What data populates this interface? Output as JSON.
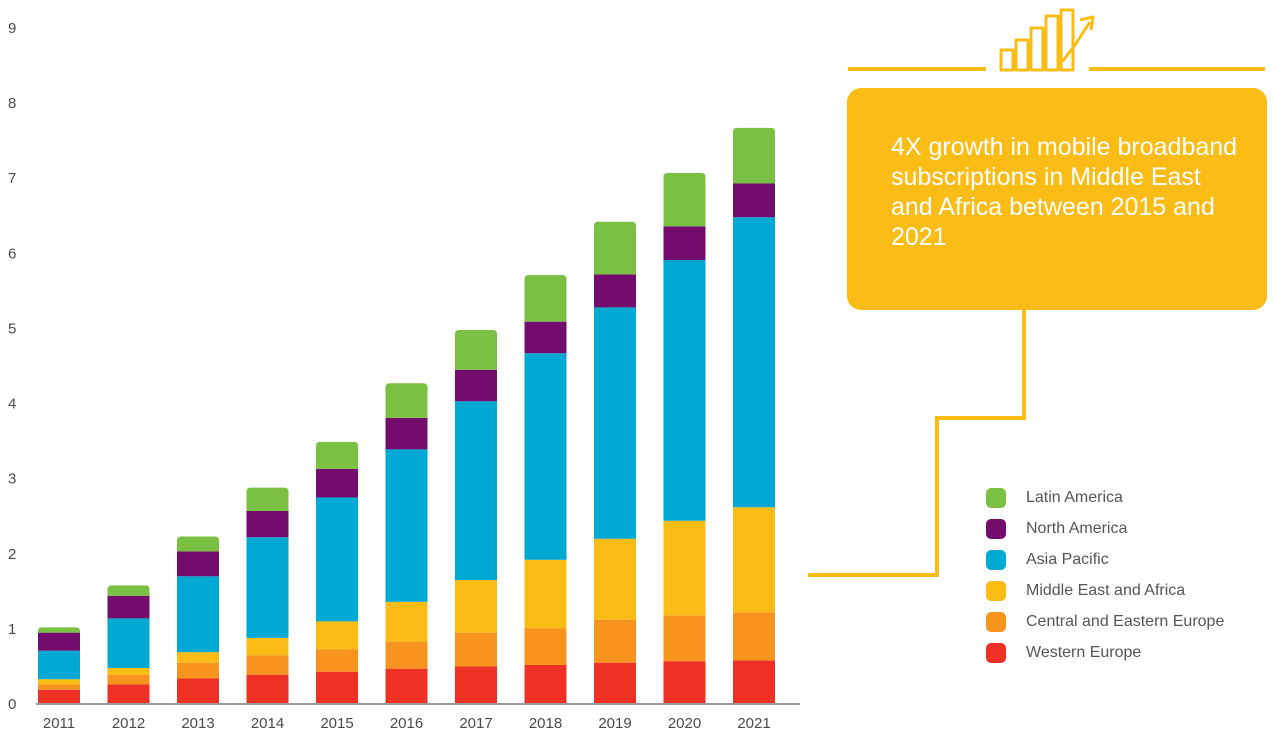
{
  "chart_data": {
    "type": "bar",
    "stacked": true,
    "categories": [
      "2011",
      "2012",
      "2013",
      "2014",
      "2015",
      "2016",
      "2017",
      "2018",
      "2019",
      "2020",
      "2021"
    ],
    "ylim": [
      0,
      9
    ],
    "yticks": [
      0,
      1,
      2,
      3,
      4,
      5,
      6,
      7,
      8,
      9
    ],
    "grid": false,
    "legend_position": "right",
    "series": [
      {
        "name": "Western Europe",
        "color": "#ee3124",
        "values": [
          0.19,
          0.26,
          0.34,
          0.39,
          0.43,
          0.47,
          0.5,
          0.52,
          0.55,
          0.57,
          0.58
        ]
      },
      {
        "name": "Central and Eastern Europe",
        "color": "#f7941d",
        "values": [
          0.07,
          0.13,
          0.21,
          0.26,
          0.3,
          0.36,
          0.45,
          0.49,
          0.57,
          0.61,
          0.64
        ]
      },
      {
        "name": "Middle East and Africa",
        "color": "#fbbc15",
        "values": [
          0.07,
          0.09,
          0.14,
          0.23,
          0.37,
          0.53,
          0.7,
          0.91,
          1.08,
          1.26,
          1.4
        ]
      },
      {
        "name": "Asia Pacific",
        "color": "#00a9d4",
        "values": [
          0.38,
          0.66,
          1.01,
          1.34,
          1.65,
          2.03,
          2.38,
          2.75,
          3.08,
          3.47,
          3.86
        ]
      },
      {
        "name": "North America",
        "color": "#740c6e",
        "values": [
          0.24,
          0.3,
          0.33,
          0.35,
          0.38,
          0.42,
          0.42,
          0.42,
          0.44,
          0.45,
          0.45
        ]
      },
      {
        "name": "Latin America",
        "color": "#7ac143",
        "values": [
          0.07,
          0.14,
          0.2,
          0.31,
          0.36,
          0.46,
          0.53,
          0.62,
          0.7,
          0.71,
          0.74
        ]
      }
    ]
  },
  "callout": {
    "text": "4X growth in mobile broadband subscriptions in Middle East and Africa between 2015 and 2021",
    "background": "#fbbc15",
    "connector_color": "#fbbc15",
    "icon": "growth-chart-icon"
  },
  "legend": {
    "items": [
      {
        "label": "Latin America",
        "color": "#7ac143"
      },
      {
        "label": "North America",
        "color": "#740c6e"
      },
      {
        "label": "Asia Pacific",
        "color": "#00a9d4"
      },
      {
        "label": "Middle East and Africa",
        "color": "#fbbc15"
      },
      {
        "label": "Central and Eastern Europe",
        "color": "#f7941d"
      },
      {
        "label": "Western Europe",
        "color": "#ee3124"
      }
    ]
  }
}
